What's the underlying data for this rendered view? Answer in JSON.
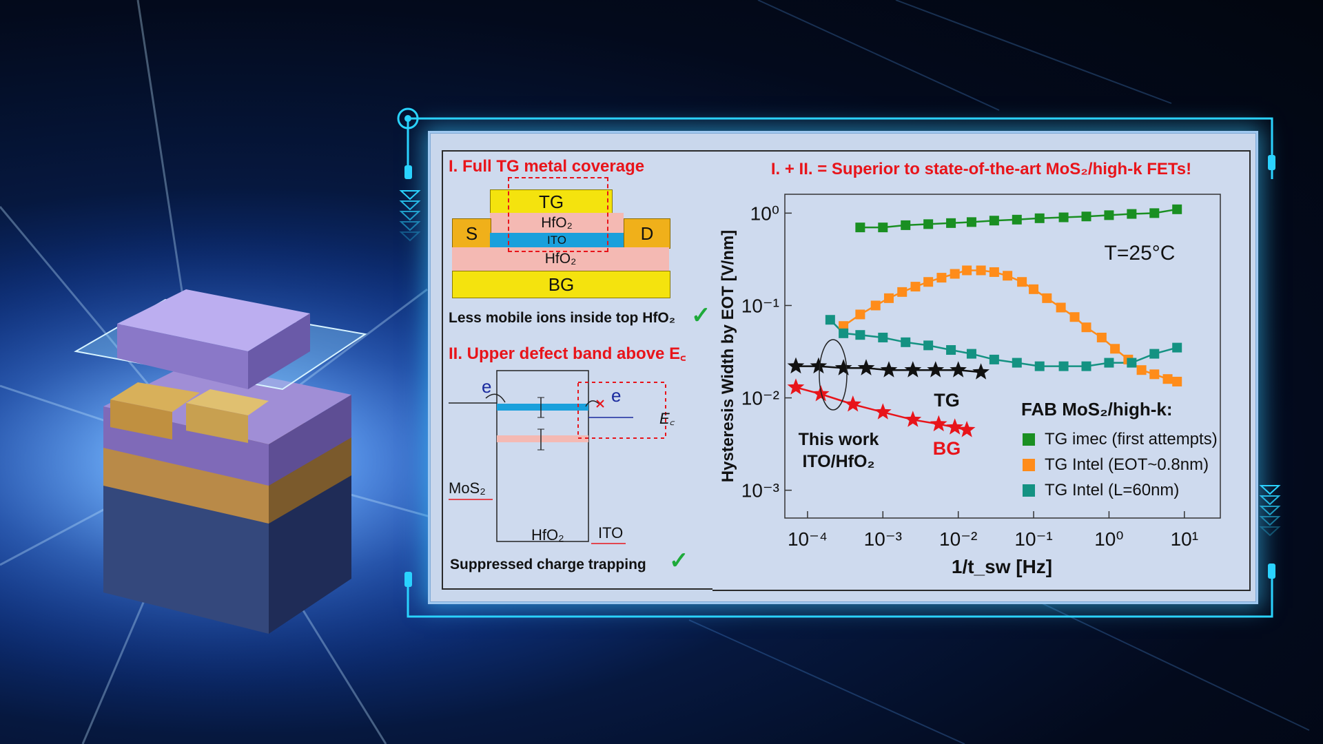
{
  "panel1": {
    "title": "I. Full TG metal coverage",
    "layers": {
      "tg": "TG",
      "hfo_top": "HfO₂",
      "ito": "ITO",
      "s": "S",
      "d": "D",
      "hfo_bottom": "HfO₂",
      "bg": "BG"
    },
    "note": "Less mobile ions inside top HfO₂"
  },
  "panel2": {
    "title": "II. Upper defect band above E꜀",
    "labels": {
      "e_left": "e",
      "e_right": "e",
      "ec": "E꜀",
      "mos2": "MoS₂",
      "hfo2": "HfO₂",
      "ito": "ITO"
    },
    "note": "Suppressed charge trapping"
  },
  "colors": {
    "tg_yellow": "#f4e30e",
    "hfo_pink": "#f4b9b3",
    "ito_blue": "#1aa0dc",
    "sd_orange": "#f0b01a",
    "red": "#e8141a",
    "green": "#1eaa3a",
    "imec": "#1a8f22",
    "intel_orange": "#ff8c1a",
    "intel_teal": "#149282",
    "cyan_frame": "#2ad4ff"
  },
  "chart_data": {
    "type": "scatter",
    "title": "I. + II. = Superior to state-of-the-art MoS₂/high-k FETs!",
    "xlabel": "1/t_sw [Hz]",
    "ylabel": "Hysteresis Width by EOT [V/nm]",
    "x_scale": "log",
    "y_scale": "log",
    "xlim": [
      5e-05,
      30
    ],
    "ylim": [
      0.0005,
      1.6
    ],
    "x_ticks": [
      "10⁻⁴",
      "10⁻³",
      "10⁻²",
      "10⁻¹",
      "10⁰",
      "10¹"
    ],
    "y_ticks": [
      "10⁰",
      "10⁻¹",
      "10⁻²",
      "10⁻³"
    ],
    "annotation_temp": "T=25°C",
    "legend_title": "FAB MoS₂/high-k:",
    "legend_position": "bottom-right",
    "annotations": {
      "tg": "TG",
      "bg": "BG",
      "this_work_1": "This work",
      "this_work_2": "ITO/HfO₂"
    },
    "series": [
      {
        "name": "TG imec (first attempts)",
        "marker": "square",
        "color": "#1a8f22",
        "x": [
          0.0005,
          0.001,
          0.002,
          0.004,
          0.008,
          0.015,
          0.03,
          0.06,
          0.12,
          0.25,
          0.5,
          1,
          2,
          4,
          8
        ],
        "y": [
          0.7,
          0.7,
          0.74,
          0.76,
          0.78,
          0.8,
          0.83,
          0.85,
          0.88,
          0.9,
          0.92,
          0.95,
          0.98,
          1.0,
          1.1
        ]
      },
      {
        "name": "TG Intel (EOT~0.8nm)",
        "marker": "square",
        "color": "#ff8c1a",
        "x": [
          0.0003,
          0.0005,
          0.0008,
          0.0012,
          0.0018,
          0.0027,
          0.004,
          0.006,
          0.009,
          0.013,
          0.02,
          0.03,
          0.045,
          0.07,
          0.1,
          0.15,
          0.23,
          0.35,
          0.5,
          0.8,
          1.2,
          1.8,
          2.7,
          4,
          6,
          8
        ],
        "y": [
          0.06,
          0.08,
          0.1,
          0.12,
          0.14,
          0.16,
          0.18,
          0.2,
          0.22,
          0.24,
          0.24,
          0.23,
          0.21,
          0.18,
          0.15,
          0.12,
          0.095,
          0.075,
          0.058,
          0.045,
          0.034,
          0.026,
          0.02,
          0.018,
          0.016,
          0.015
        ]
      },
      {
        "name": "TG Intel (L=60nm)",
        "marker": "square",
        "color": "#149282",
        "x": [
          0.0002,
          0.0003,
          0.0005,
          0.001,
          0.002,
          0.004,
          0.008,
          0.015,
          0.03,
          0.06,
          0.12,
          0.25,
          0.5,
          1,
          2,
          4,
          8
        ],
        "y": [
          0.07,
          0.05,
          0.048,
          0.045,
          0.04,
          0.037,
          0.033,
          0.03,
          0.026,
          0.024,
          0.022,
          0.022,
          0.022,
          0.024,
          0.024,
          0.03,
          0.035
        ]
      },
      {
        "name": "TG",
        "marker": "star",
        "color": "#111111",
        "x": [
          7e-05,
          0.00014,
          0.0003,
          0.0006,
          0.0012,
          0.0025,
          0.005,
          0.01,
          0.02
        ],
        "y": [
          0.022,
          0.022,
          0.021,
          0.021,
          0.02,
          0.02,
          0.02,
          0.02,
          0.019
        ]
      },
      {
        "name": "BG",
        "marker": "star",
        "color": "#e8141a",
        "x": [
          7e-05,
          0.00015,
          0.0004,
          0.001,
          0.0025,
          0.0055,
          0.009,
          0.013
        ],
        "y": [
          0.013,
          0.011,
          0.0085,
          0.007,
          0.0058,
          0.0052,
          0.0048,
          0.0045
        ]
      }
    ]
  }
}
